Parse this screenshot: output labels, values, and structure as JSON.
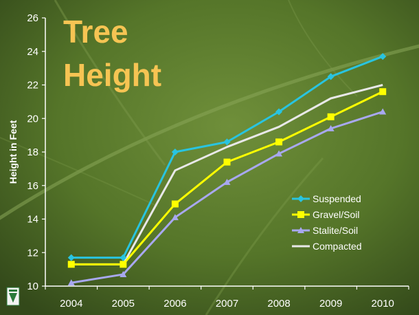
{
  "chart_data": {
    "type": "line",
    "title_lines": [
      "Tree",
      "Height"
    ],
    "xlabel": "",
    "ylabel": "Height in Feet",
    "categories": [
      "2004",
      "2005",
      "2006",
      "2007",
      "2008",
      "2009",
      "2010"
    ],
    "ylim": [
      10,
      26
    ],
    "yticks": [
      10,
      12,
      14,
      16,
      18,
      20,
      22,
      24,
      26
    ],
    "grid": false,
    "legend_position": "bottom-right",
    "series": [
      {
        "name": "Suspended",
        "color": "#29c4e0",
        "marker": "diamond",
        "values": [
          11.7,
          11.7,
          18.0,
          18.6,
          20.4,
          22.5,
          23.7
        ]
      },
      {
        "name": "Gravel/Soil",
        "color": "#ffff00",
        "marker": "square",
        "values": [
          11.3,
          11.3,
          14.9,
          17.4,
          18.6,
          20.1,
          21.6
        ]
      },
      {
        "name": "Stalite/Soil",
        "color": "#a8a8f0",
        "marker": "triangle",
        "values": [
          10.2,
          10.7,
          14.1,
          16.2,
          17.9,
          19.4,
          20.4
        ]
      },
      {
        "name": "Compacted",
        "color": "#e8e8e8",
        "marker": "none",
        "values": [
          11.3,
          11.3,
          16.9,
          18.3,
          19.5,
          21.2,
          22.0
        ]
      }
    ]
  }
}
